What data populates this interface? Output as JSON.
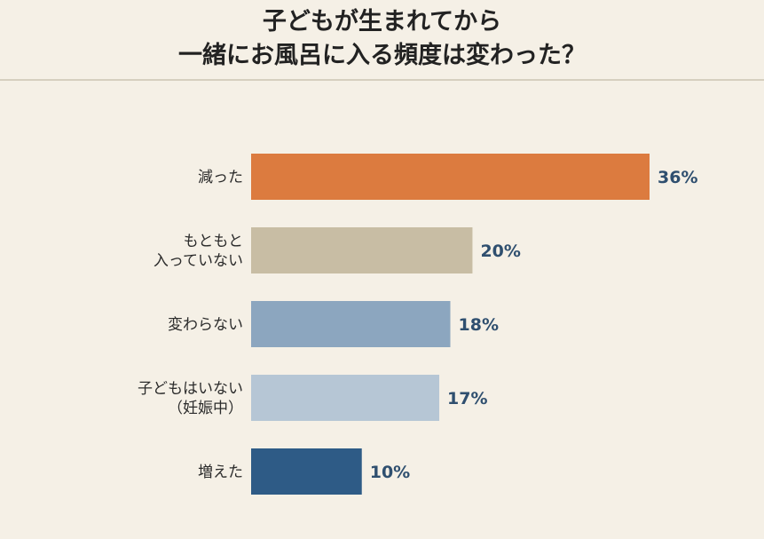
{
  "title_line1": "子どもが生まれてから",
  "title_line2": "一緒にお風呂に入る頻度は変わった？",
  "chart_data": {
    "type": "bar",
    "orientation": "horizontal",
    "title": "子どもが生まれてから一緒にお風呂に入る頻度は変わった？",
    "categories": [
      [
        "減った"
      ],
      [
        "もともと",
        "入っていない"
      ],
      [
        "変わらない"
      ],
      [
        "子どもはいない",
        "（妊娠中）"
      ],
      [
        "増えた"
      ]
    ],
    "values": [
      36,
      20,
      18,
      17,
      10
    ],
    "value_labels": [
      "36%",
      "20%",
      "18%",
      "17%",
      "10%"
    ],
    "colors": [
      "#dc7b3f",
      "#c8bda4",
      "#8ca6bf",
      "#b6c6d5",
      "#2e5b86"
    ],
    "unit": "%",
    "xlim": [
      0,
      36
    ],
    "grid": false,
    "legend": "none"
  }
}
